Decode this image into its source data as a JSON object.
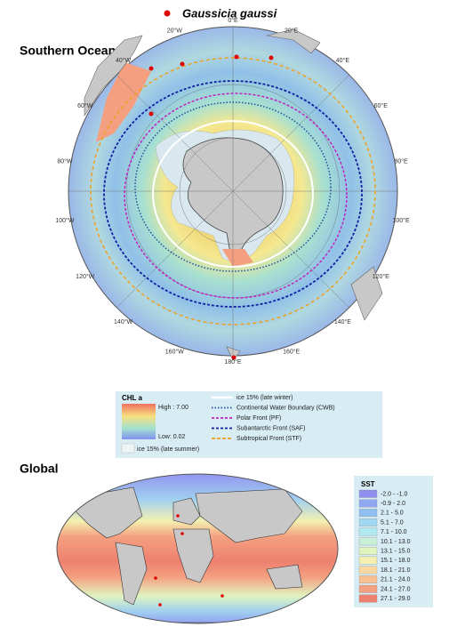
{
  "legend_top": {
    "species": "Gaussicia gaussi"
  },
  "southern_ocean": {
    "title": "Southern Ocean",
    "longitude_labels": [
      "0°E",
      "20°E",
      "40°E",
      "60°E",
      "80°E",
      "100°E",
      "120°E",
      "140°E",
      "160°E",
      "180°E",
      "160°W",
      "140°W",
      "120°W",
      "100°W",
      "80°W",
      "60°W",
      "40°W",
      "20°W"
    ]
  },
  "chl_legend": {
    "title": "CHL a",
    "high": "High : 7.00",
    "low": "Low: 0.02",
    "ice_summer": "ice 15% (late summer)",
    "lines": [
      {
        "label": "ice 15% (late winter)",
        "color": "#ffffff",
        "style": "solid"
      },
      {
        "label": "Continental Water Boundary (CWB)",
        "color": "#1f4fa0",
        "style": "dot"
      },
      {
        "label": "Polar Front (PF)",
        "color": "#c020c0",
        "style": "tri"
      },
      {
        "label": "Subantarctic Front (SAF)",
        "color": "#1020a0",
        "style": "tri"
      },
      {
        "label": "Subtropical Front (STF)",
        "color": "#f0a020",
        "style": "dash"
      }
    ]
  },
  "global": {
    "title": "Global"
  },
  "sst_legend": {
    "title": "SST",
    "items": [
      {
        "label": "-2.0 - -1.0",
        "color": "#8f8fef"
      },
      {
        "label": "-0.9 - 2.0",
        "color": "#8fa8f0"
      },
      {
        "label": "2.1 - 5.0",
        "color": "#8fc0f0"
      },
      {
        "label": "5.1 - 7.0",
        "color": "#9fd8f0"
      },
      {
        "label": "7.1 - 10.0",
        "color": "#b0eaf0"
      },
      {
        "label": "10.1 - 13.0",
        "color": "#c8f0d8"
      },
      {
        "label": "13.1 - 15.0",
        "color": "#e0f4c0"
      },
      {
        "label": "15.1 - 18.0",
        "color": "#f4f0b0"
      },
      {
        "label": "18.1 - 21.0",
        "color": "#f8d8a0"
      },
      {
        "label": "21.1 - 24.0",
        "color": "#f8c090"
      },
      {
        "label": "24.1 - 27.0",
        "color": "#f4a080"
      },
      {
        "label": "27.1 - 29.0",
        "color": "#ee8070"
      }
    ]
  }
}
